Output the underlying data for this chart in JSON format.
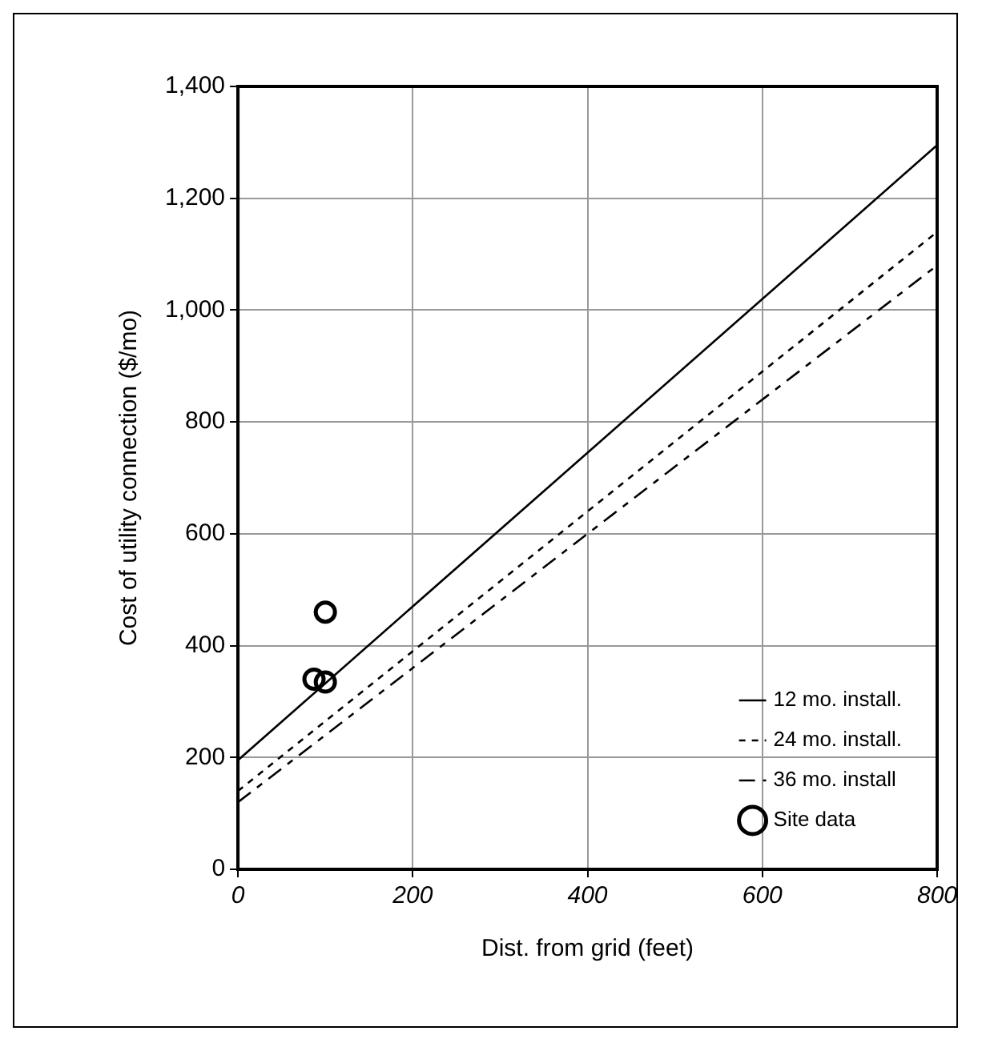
{
  "chart_data": {
    "type": "line",
    "xlabel": "Dist. from grid (feet)",
    "ylabel": "Cost of utility connection ($/mo)",
    "xlim": [
      0,
      800
    ],
    "xticks": [
      0,
      200,
      400,
      600,
      800
    ],
    "ylim": [
      0,
      1400
    ],
    "yticks": [
      0,
      {
        "value": 200,
        "label": "200"
      },
      {
        "value": 400,
        "label": "400"
      },
      {
        "value": 600,
        "label": "600"
      },
      {
        "value": 800,
        "label": "800"
      },
      {
        "value": 1000,
        "label": "1,000"
      },
      {
        "value": 1200,
        "label": "1,200"
      },
      {
        "value": 1400,
        "label": "1,400"
      }
    ],
    "grid": true,
    "legend": "bottom right",
    "marker": "none",
    "series": [
      {
        "name": "12 mo. install.",
        "color": "#000000",
        "line_style": "solid",
        "x": [
          0,
          800
        ],
        "values": [
          195,
          1295
        ]
      },
      {
        "name": "24 mo. install.",
        "color": "#000000",
        "line_style": "dashed",
        "x": [
          0,
          800
        ],
        "values": [
          140,
          1140
        ]
      },
      {
        "name": "36 mo. install",
        "color": "#000000",
        "line_style": "dashed",
        "x": [
          0,
          800
        ],
        "values": [
          120,
          1080
        ]
      },
      {
        "name": "Site data",
        "type": "scatter",
        "marker": "circle",
        "color": "#000000",
        "x": [
          87,
          100,
          100
        ],
        "values": [
          340,
          335,
          460
        ]
      }
    ]
  }
}
